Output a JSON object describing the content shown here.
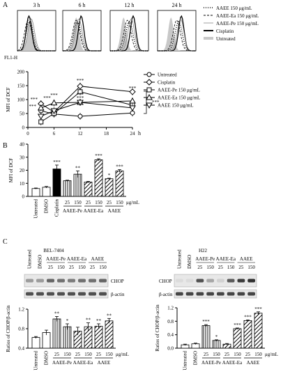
{
  "panel_labels": [
    "A",
    "B",
    "C"
  ],
  "flow": {
    "times": [
      "3 h",
      "6 h",
      "12 h",
      "24 h"
    ],
    "x_axis_label": "FL1-H",
    "legend": [
      {
        "label": "AAEE 150 μg/mL",
        "style": "dotted-thick"
      },
      {
        "label": "AAEE-Ea 150 μg/mL",
        "style": "dashed"
      },
      {
        "label": "AAEE-Pe 150 μg/mL",
        "style": "thin-grey"
      },
      {
        "label": "Cisplatin",
        "style": "thick-black"
      },
      {
        "label": "Untreated",
        "style": "grey-fill"
      }
    ]
  },
  "chart_data": [
    {
      "type": "line",
      "panel": "A",
      "ylabel": "MFI of DCF",
      "xlabel": "h",
      "x": [
        3,
        6,
        12,
        24
      ],
      "xticks": [
        0,
        6,
        12,
        18,
        24
      ],
      "yticks": [
        0,
        50,
        100,
        150,
        200
      ],
      "ylim": [
        0,
        200
      ],
      "xlim": [
        0,
        24
      ],
      "significance": "***",
      "series": [
        {
          "name": "Untreated",
          "marker": "circle",
          "values": [
            60,
            48,
            40,
            52
          ]
        },
        {
          "name": "Cisplatin",
          "marker": "diamond",
          "values": [
            85,
            55,
            148,
            128
          ]
        },
        {
          "name": "AAEE-Pe 150 μg/mL",
          "marker": "square",
          "values": [
            20,
            50,
            128,
            80
          ]
        },
        {
          "name": "AAEE-Ea 150 μg/mL",
          "marker": "triangle-up",
          "values": [
            70,
            88,
            90,
            95
          ]
        },
        {
          "name": "AAEE 150 μg/mL",
          "marker": "triangle-down",
          "values": [
            40,
            60,
            90,
            70
          ]
        }
      ]
    },
    {
      "type": "bar",
      "panel": "B",
      "ylabel": "MFI of DCF",
      "categories": [
        "Untreated",
        "DMSO",
        "Cisplatin",
        "25",
        "150",
        "25",
        "150",
        "25",
        "150"
      ],
      "groups": [
        "AAEE-Pe",
        "AAEE-Ea",
        "AAEE"
      ],
      "unit": "μg/mL",
      "values": [
        6,
        7,
        21,
        12,
        17,
        11,
        28,
        13.5,
        19.5
      ],
      "errors": [
        0.4,
        0.6,
        3,
        0.4,
        2.5,
        0.5,
        0.8,
        0.4,
        1
      ],
      "significance": [
        "",
        "",
        "***",
        "",
        "**",
        "",
        "***",
        "*",
        "***"
      ],
      "yticks": [
        0,
        10,
        20,
        30,
        40
      ],
      "ylim": [
        0,
        40
      ]
    },
    {
      "type": "bar",
      "panel": "C",
      "cell_line": "BEL-7404",
      "ylabel": "Ratios of CHOP/β-actin",
      "categories": [
        "Untreated",
        "DMSO",
        "25",
        "150",
        "25",
        "150",
        "25",
        "150"
      ],
      "groups": [
        "AAEE-Pe",
        "AAEE-Ea",
        "AAEE"
      ],
      "unit": "μg/mL",
      "values": [
        0.62,
        0.72,
        1.0,
        0.84,
        0.75,
        0.84,
        0.85,
        0.96
      ],
      "errors": [
        0.02,
        0.05,
        0.05,
        0.06,
        0.08,
        0.08,
        0.05,
        0.05
      ],
      "significance": [
        "",
        "",
        "**",
        "*",
        "",
        "**",
        "**",
        "**"
      ],
      "yticks": [
        0.4,
        0.8,
        1.2
      ],
      "ylim": [
        0.4,
        1.2
      ]
    },
    {
      "type": "bar",
      "panel": "C",
      "cell_line": "H22",
      "ylabel": "Ratios of CHOP/β-actin",
      "categories": [
        "Untreated",
        "DMSO",
        "25",
        "150",
        "25",
        "150",
        "25",
        "150"
      ],
      "groups": [
        "AAEE-Pe",
        "AAEE-Ea",
        "AAEE"
      ],
      "unit": "μg/mL",
      "values": [
        0.1,
        0.13,
        0.67,
        0.23,
        0.12,
        0.58,
        0.82,
        1.04
      ],
      "errors": [
        0.02,
        0.02,
        0.03,
        0.02,
        0.02,
        0.02,
        0.02,
        0.04
      ],
      "significance": [
        "",
        "",
        "***",
        "*",
        "",
        "***",
        "***",
        "***"
      ],
      "yticks": [
        0.0,
        0.4,
        0.8,
        1.2
      ],
      "ylim": [
        0,
        1.2
      ]
    }
  ],
  "western": {
    "left": {
      "cell_line": "BEL-7404",
      "lanes": [
        "Untreated",
        "DMSO",
        "25",
        "150",
        "25",
        "150",
        "25",
        "150"
      ],
      "groups": [
        "AAEE-Pe",
        "AAEE-Ea",
        "AAEE"
      ],
      "chop": [
        0.35,
        0.35,
        0.6,
        0.55,
        0.5,
        0.55,
        0.55,
        0.6
      ],
      "actin": [
        0.7,
        0.7,
        0.7,
        0.7,
        0.7,
        0.7,
        0.7,
        0.7
      ]
    },
    "right": {
      "cell_line": "H22",
      "lanes": [
        "Untreated",
        "DMSO",
        "25",
        "150",
        "25",
        "150",
        "25",
        "150"
      ],
      "groups": [
        "AAEE-Pe",
        "AAEE-Ea",
        "AAEE"
      ],
      "chop": [
        0.05,
        0.05,
        0.7,
        0.3,
        0.1,
        0.65,
        0.8,
        0.85
      ],
      "actin": [
        0.75,
        0.75,
        0.75,
        0.75,
        0.75,
        0.75,
        0.75,
        0.75
      ]
    },
    "band_labels": [
      "CHOP",
      "β-actin"
    ]
  }
}
